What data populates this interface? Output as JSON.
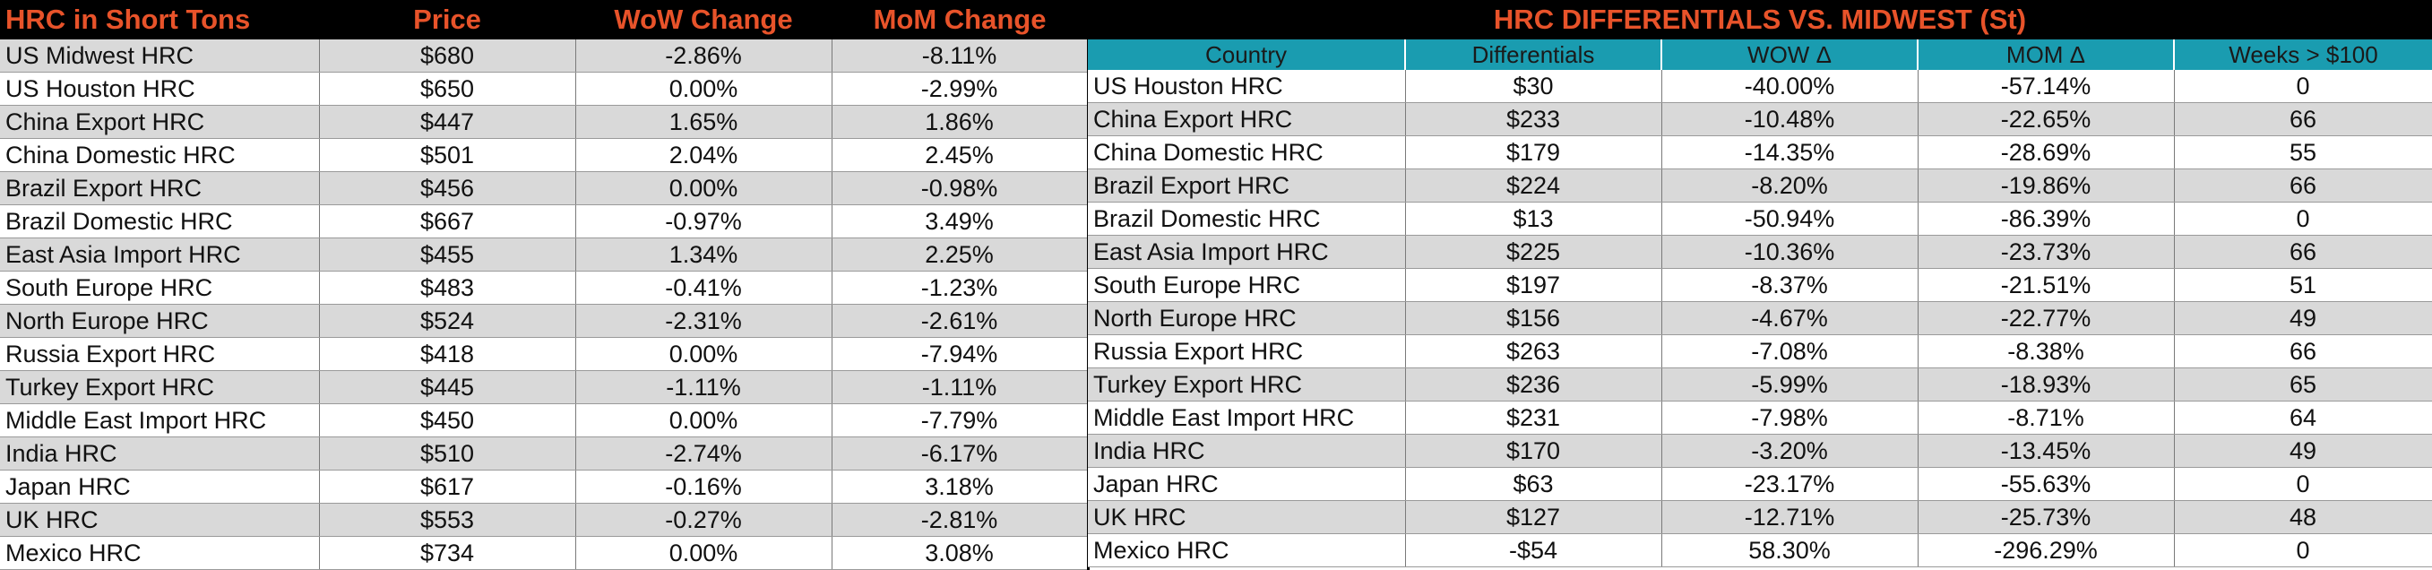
{
  "left": {
    "title": "HRC in Short Tons",
    "columns": [
      "Price",
      "WoW Change",
      "MoM Change"
    ],
    "rows": [
      [
        "US Midwest HRC",
        "$680",
        "-2.86%",
        "-8.11%"
      ],
      [
        "US Houston HRC",
        "$650",
        "0.00%",
        "-2.99%"
      ],
      [
        "China Export HRC",
        "$447",
        "1.65%",
        "1.86%"
      ],
      [
        "China Domestic HRC",
        "$501",
        "2.04%",
        "2.45%"
      ],
      [
        "Brazil Export HRC",
        "$456",
        "0.00%",
        "-0.98%"
      ],
      [
        "Brazil Domestic HRC",
        "$667",
        "-0.97%",
        "3.49%"
      ],
      [
        "East Asia Import HRC",
        "$455",
        "1.34%",
        "2.25%"
      ],
      [
        "South Europe HRC",
        "$483",
        "-0.41%",
        "-1.23%"
      ],
      [
        "North Europe HRC",
        "$524",
        "-2.31%",
        "-2.61%"
      ],
      [
        "Russia Export HRC",
        "$418",
        "0.00%",
        "-7.94%"
      ],
      [
        "Turkey Export HRC",
        "$445",
        "-1.11%",
        "-1.11%"
      ],
      [
        "Middle East Import HRC",
        "$450",
        "0.00%",
        "-7.79%"
      ],
      [
        "India HRC",
        "$510",
        "-2.74%",
        "-6.17%"
      ],
      [
        "Japan HRC",
        "$617",
        "-0.16%",
        "3.18%"
      ],
      [
        "UK HRC",
        "$553",
        "-0.27%",
        "-2.81%"
      ],
      [
        "Mexico HRC",
        "$734",
        "0.00%",
        "3.08%"
      ]
    ]
  },
  "right": {
    "title": "HRC DIFFERENTIALS VS. MIDWEST (St)",
    "columns": [
      "Country",
      "Differentials",
      "WOW Δ",
      "MOM Δ",
      "Weeks > $100"
    ],
    "rows": [
      [
        "US Houston HRC",
        "$30",
        "-40.00%",
        "-57.14%",
        "0"
      ],
      [
        "China Export HRC",
        "$233",
        "-10.48%",
        "-22.65%",
        "66"
      ],
      [
        "China Domestic HRC",
        "$179",
        "-14.35%",
        "-28.69%",
        "55"
      ],
      [
        "Brazil Export HRC",
        "$224",
        "-8.20%",
        "-19.86%",
        "66"
      ],
      [
        "Brazil Domestic HRC",
        "$13",
        "-50.94%",
        "-86.39%",
        "0"
      ],
      [
        "East Asia Import HRC",
        "$225",
        "-10.36%",
        "-23.73%",
        "66"
      ],
      [
        "South Europe HRC",
        "$197",
        "-8.37%",
        "-21.51%",
        "51"
      ],
      [
        "North Europe HRC",
        "$156",
        "-4.67%",
        "-22.77%",
        "49"
      ],
      [
        "Russia Export HRC",
        "$263",
        "-7.08%",
        "-8.38%",
        "66"
      ],
      [
        "Turkey Export HRC",
        "$236",
        "-5.99%",
        "-18.93%",
        "65"
      ],
      [
        "Middle East Import HRC",
        "$231",
        "-7.98%",
        "-8.71%",
        "64"
      ],
      [
        "India HRC",
        "$170",
        "-3.20%",
        "-13.45%",
        "49"
      ],
      [
        "Japan HRC",
        "$63",
        "-23.17%",
        "-55.63%",
        "0"
      ],
      [
        "UK HRC",
        "$127",
        "-12.71%",
        "-25.73%",
        "48"
      ],
      [
        "Mexico HRC",
        "-$54",
        "58.30%",
        "-296.29%",
        "0"
      ]
    ]
  }
}
